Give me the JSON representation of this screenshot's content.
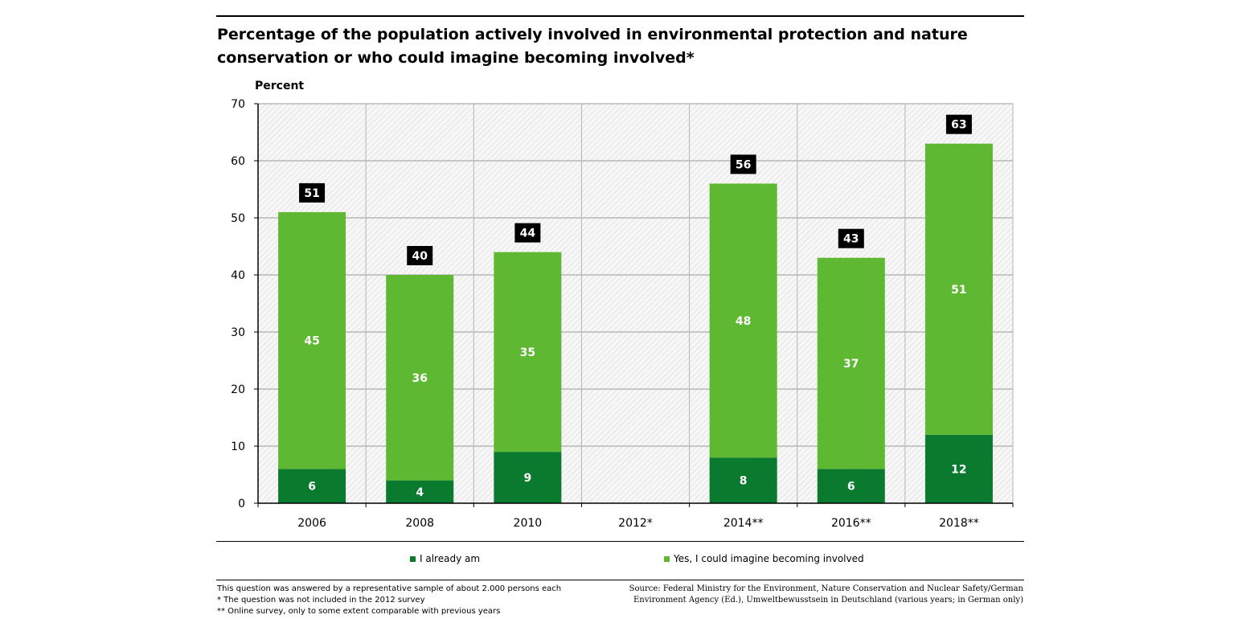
{
  "title": "Percentage of the population actively involved in environmental protection and nature conservation or who could imagine becoming involved*",
  "colors": {
    "dark_green": "#0a7a2e",
    "light_green": "#5fb832",
    "grid": "#bdbdbd",
    "hatch": "#dcdcdc",
    "total_box": "#000000"
  },
  "legend": {
    "items": [
      {
        "label": "I already am",
        "color": "#0a7a2e"
      },
      {
        "label": "Yes, I could imagine becoming involved",
        "color": "#5fb832"
      }
    ]
  },
  "notes": {
    "line1": "This question was answered by a representative sample of about 2.000 persons each",
    "line2": "* The question was not included in the 2012 survey",
    "line3": "** Online survey, only to some extent comparable with previous years"
  },
  "source": {
    "line1": "Source: Federal Ministry for the Environment, Nature Conservation and Nuclear Safety/German",
    "line2": "Environment Agency (Ed.), Umweltbewusstsein in Deutschland (various years; in German only)"
  },
  "chart_data": {
    "type": "bar",
    "stacked": true,
    "title": "Percentage of the population actively involved in environmental protection and nature conservation or who could imagine becoming involved*",
    "xlabel": "",
    "ylabel": "Percent",
    "ylim": [
      0,
      70
    ],
    "yticks": [
      0,
      10,
      20,
      30,
      40,
      50,
      60,
      70
    ],
    "grid": true,
    "legend_position": "bottom",
    "categories": [
      "2006",
      "2008",
      "2010",
      "2012*",
      "2014**",
      "2016**",
      "2018**"
    ],
    "series": [
      {
        "name": "I already am",
        "values": [
          6,
          4,
          9,
          null,
          8,
          6,
          12
        ]
      },
      {
        "name": "Yes, I could imagine becoming involved",
        "values": [
          45,
          36,
          35,
          null,
          48,
          37,
          51
        ]
      }
    ],
    "totals": [
      51,
      40,
      44,
      null,
      56,
      43,
      63
    ]
  }
}
